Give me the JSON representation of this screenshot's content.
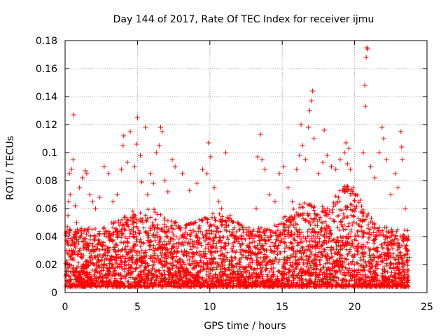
{
  "chart_data": {
    "type": "scatter",
    "title": "Day 144 of 2017, Rate Of TEC Index for receiver ijmu",
    "xlabel": "GPS time / hours",
    "ylabel": "ROTI / TECUs",
    "xlim": [
      0,
      25
    ],
    "ylim": [
      0,
      0.18
    ],
    "xticks": [
      0,
      5,
      10,
      15,
      20,
      25
    ],
    "xtick_labels": [
      "0",
      "5",
      "10",
      "15",
      "20",
      "25"
    ],
    "yticks": [
      0,
      0.02,
      0.04,
      0.06,
      0.08,
      0.1,
      0.12,
      0.14,
      0.16,
      0.18
    ],
    "ytick_labels": [
      "0",
      "0.02",
      "0.04",
      "0.06",
      "0.08",
      "0.1",
      "0.12",
      "0.14",
      "0.16",
      "0.18"
    ],
    "grid": true,
    "marker": "+",
    "series": [
      {
        "name": "ROTI",
        "color": "#ff0000",
        "points": [
          [
            0.05,
            0.012
          ],
          [
            0.1,
            0.03
          ],
          [
            0.15,
            0.047
          ],
          [
            0.2,
            0.055
          ],
          [
            0.25,
            0.065
          ],
          [
            0.3,
            0.085
          ],
          [
            0.35,
            0.07
          ],
          [
            0.45,
            0.088
          ],
          [
            0.55,
            0.095
          ],
          [
            0.6,
            0.127
          ],
          [
            0.7,
            0.062
          ],
          [
            0.8,
            0.05
          ],
          [
            1.0,
            0.075
          ],
          [
            1.2,
            0.082
          ],
          [
            1.4,
            0.087
          ],
          [
            1.5,
            0.085
          ],
          [
            1.7,
            0.07
          ],
          [
            1.9,
            0.065
          ],
          [
            2.1,
            0.06
          ],
          [
            2.4,
            0.068
          ],
          [
            2.7,
            0.09
          ],
          [
            3.0,
            0.085
          ],
          [
            3.3,
            0.065
          ],
          [
            3.6,
            0.07
          ],
          [
            3.9,
            0.088
          ],
          [
            4.0,
            0.105
          ],
          [
            4.05,
            0.112
          ],
          [
            4.3,
            0.093
          ],
          [
            4.5,
            0.115
          ],
          [
            4.8,
            0.09
          ],
          [
            4.95,
            0.106
          ],
          [
            5.0,
            0.125
          ],
          [
            5.2,
            0.098
          ],
          [
            5.3,
            0.079
          ],
          [
            5.55,
            0.118
          ],
          [
            5.7,
            0.07
          ],
          [
            5.9,
            0.085
          ],
          [
            6.1,
            0.078
          ],
          [
            6.3,
            0.1
          ],
          [
            6.5,
            0.105
          ],
          [
            6.6,
            0.118
          ],
          [
            6.7,
            0.115
          ],
          [
            6.9,
            0.08
          ],
          [
            7.1,
            0.072
          ],
          [
            7.4,
            0.095
          ],
          [
            7.6,
            0.09
          ],
          [
            8.1,
            0.085
          ],
          [
            8.6,
            0.073
          ],
          [
            9.1,
            0.078
          ],
          [
            9.5,
            0.088
          ],
          [
            9.8,
            0.085
          ],
          [
            9.9,
            0.107
          ],
          [
            10.05,
            0.097
          ],
          [
            10.3,
            0.075
          ],
          [
            10.6,
            0.065
          ],
          [
            10.8,
            0.06
          ],
          [
            11.1,
            0.1
          ],
          [
            11.4,
            0.055
          ],
          [
            11.9,
            0.05
          ],
          [
            12.2,
            0.048
          ],
          [
            12.5,
            0.045
          ],
          [
            12.9,
            0.04
          ],
          [
            13.2,
            0.06
          ],
          [
            13.3,
            0.097
          ],
          [
            13.5,
            0.113
          ],
          [
            13.6,
            0.095
          ],
          [
            13.8,
            0.088
          ],
          [
            14.1,
            0.07
          ],
          [
            14.5,
            0.065
          ],
          [
            14.8,
            0.085
          ],
          [
            15.1,
            0.09
          ],
          [
            15.4,
            0.075
          ],
          [
            15.7,
            0.065
          ],
          [
            16.0,
            0.088
          ],
          [
            16.2,
            0.098
          ],
          [
            16.3,
            0.12
          ],
          [
            16.4,
            0.105
          ],
          [
            16.6,
            0.095
          ],
          [
            16.8,
            0.118
          ],
          [
            16.9,
            0.13
          ],
          [
            17.0,
            0.137
          ],
          [
            17.1,
            0.144
          ],
          [
            17.2,
            0.11
          ],
          [
            17.5,
            0.085
          ],
          [
            17.8,
            0.093
          ],
          [
            17.9,
            0.116
          ],
          [
            18.1,
            0.098
          ],
          [
            18.4,
            0.09
          ],
          [
            18.7,
            0.088
          ],
          [
            19.0,
            0.095
          ],
          [
            19.3,
            0.1
          ],
          [
            19.4,
            0.107
          ],
          [
            19.5,
            0.092
          ],
          [
            19.6,
            0.103
          ],
          [
            19.7,
            0.088
          ],
          [
            19.9,
            0.075
          ],
          [
            20.1,
            0.07
          ],
          [
            20.4,
            0.066
          ],
          [
            20.6,
            0.1
          ],
          [
            20.7,
            0.148
          ],
          [
            20.75,
            0.133
          ],
          [
            20.8,
            0.168
          ],
          [
            20.85,
            0.175
          ],
          [
            20.9,
            0.174
          ],
          [
            21.1,
            0.09
          ],
          [
            21.4,
            0.082
          ],
          [
            21.7,
            0.1
          ],
          [
            21.9,
            0.118
          ],
          [
            22.0,
            0.11
          ],
          [
            22.2,
            0.095
          ],
          [
            22.5,
            0.07
          ],
          [
            22.8,
            0.085
          ],
          [
            23.0,
            0.075
          ],
          [
            23.2,
            0.115
          ],
          [
            23.25,
            0.104
          ],
          [
            23.3,
            0.095
          ],
          [
            23.5,
            0.06
          ],
          [
            23.7,
            0.04
          ],
          [
            23.8,
            0.025
          ]
        ]
      }
    ]
  }
}
